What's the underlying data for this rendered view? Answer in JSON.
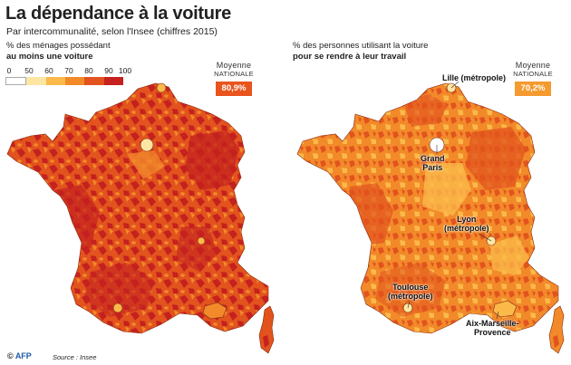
{
  "title": "La dépendance à la voiture",
  "subtitle": "Par intercommunalité, selon l'Insee (chiffres 2015)",
  "left_panel": {
    "label_line1": "% des ménages possédant",
    "label_line2": "au moins une voiture",
    "average_caption_1": "Moyenne",
    "average_caption_2": "nationale",
    "average_value": "80,9%",
    "average_color": "#e9541d"
  },
  "right_panel": {
    "label_line1": "% des personnes utilisant la voiture",
    "label_line2": "pour se rendre à leur travail",
    "average_caption_1": "Moyenne",
    "average_caption_2": "nationale",
    "average_value": "70,2%",
    "average_color": "#f49a2e"
  },
  "legend": {
    "ticks": [
      "0",
      "50",
      "60",
      "70",
      "80",
      "90",
      "100"
    ],
    "colors": [
      "#ffffff",
      "#fde5a2",
      "#fbb94a",
      "#f28a2a",
      "#e2531e",
      "#c4211f"
    ]
  },
  "cities": {
    "lille": "Lille (métropole)",
    "paris_1": "Grand",
    "paris_2": "Paris",
    "lyon_1": "Lyon",
    "lyon_2": "(métropole)",
    "toulouse_1": "Toulouse",
    "toulouse_2": "(métropole)",
    "marseille_1": "Aix-Marseille-",
    "marseille_2": "Provence"
  },
  "footer": {
    "logo": "AFP",
    "source": "Source : Insee"
  }
}
